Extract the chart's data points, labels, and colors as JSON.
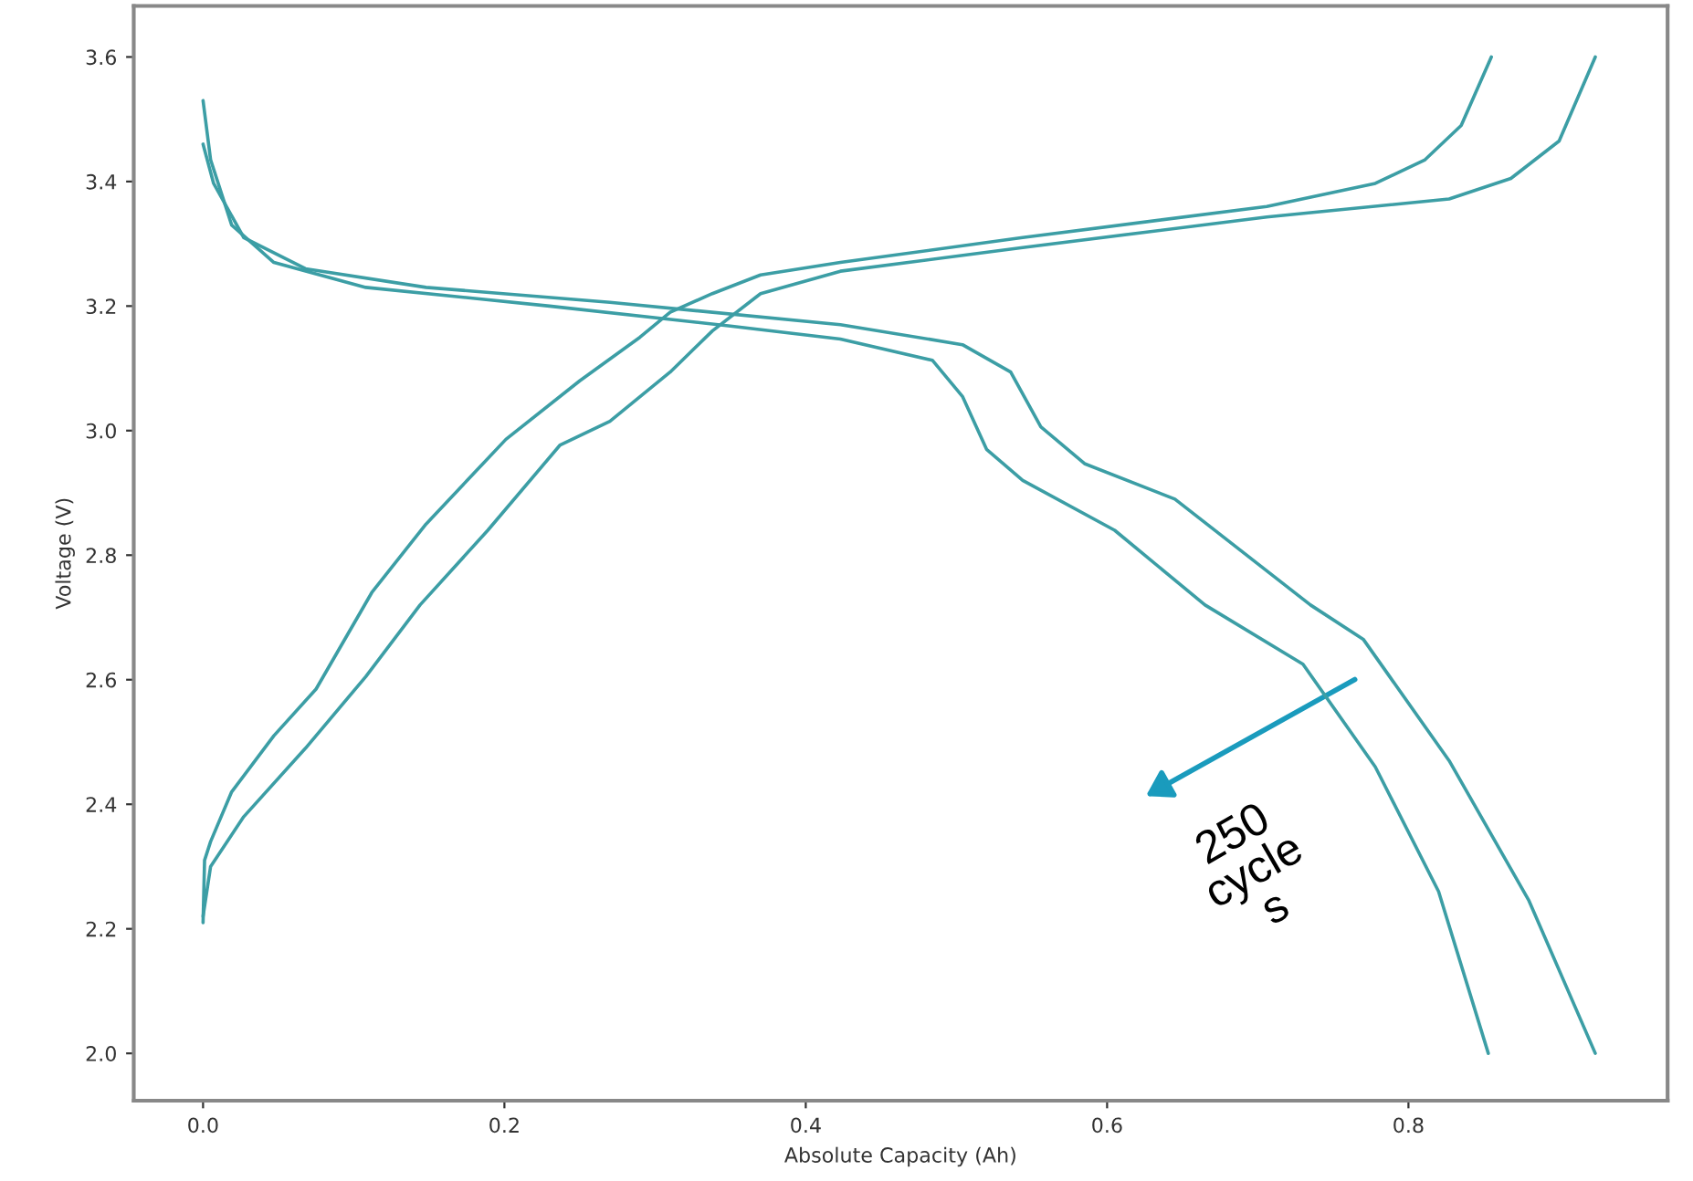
{
  "chart_data": {
    "type": "line",
    "xlabel": "Absolute Capacity (Ah)",
    "ylabel": "Voltage (V)",
    "xlim": [
      -0.046,
      0.972
    ],
    "ylim": [
      1.924,
      3.682
    ],
    "xticks": [
      {
        "value": 0,
        "label": "0.0"
      },
      0.2,
      0.4,
      0.6,
      0.8
    ],
    "yticks": [
      {
        "value": 2,
        "label": "2.0"
      },
      2.2,
      2.4,
      2.6,
      2.8,
      {
        "value": 3,
        "label": "3.0"
      },
      3.2,
      3.4,
      3.6
    ],
    "grid": false,
    "marker": "none",
    "line_style": "solid",
    "series": [
      {
        "color": "#3c9ea5",
        "x": [
          0.0,
          0.001,
          0.005,
          0.019,
          0.047,
          0.075,
          0.112,
          0.148,
          0.201,
          0.25,
          0.29,
          0.31,
          0.338,
          0.37,
          0.423,
          0.544,
          0.706,
          0.778,
          0.811,
          0.835,
          0.855
        ],
        "values": [
          2.21,
          2.31,
          2.34,
          2.42,
          2.51,
          2.585,
          2.74,
          2.85,
          2.986,
          3.08,
          3.15,
          3.19,
          3.22,
          3.25,
          3.27,
          3.31,
          3.36,
          3.397,
          3.435,
          3.49,
          3.6
        ]
      },
      {
        "color": "#3c9ea5",
        "x": [
          0.0,
          0.005,
          0.027,
          0.068,
          0.108,
          0.144,
          0.189,
          0.237,
          0.27,
          0.31,
          0.338,
          0.37,
          0.423,
          0.544,
          0.706,
          0.827,
          0.868,
          0.9,
          0.924
        ],
        "values": [
          2.22,
          2.3,
          2.38,
          2.49,
          2.605,
          2.72,
          2.84,
          2.977,
          3.015,
          3.094,
          3.16,
          3.22,
          3.256,
          3.294,
          3.343,
          3.372,
          3.405,
          3.465,
          3.6
        ]
      },
      {
        "color": "#3c9ea5",
        "x": [
          0.0,
          0.005,
          0.019,
          0.047,
          0.108,
          0.23,
          0.35,
          0.423,
          0.484,
          0.504,
          0.52,
          0.544,
          0.605,
          0.665,
          0.73,
          0.778,
          0.82,
          0.853
        ],
        "values": [
          3.53,
          3.435,
          3.33,
          3.27,
          3.23,
          3.2,
          3.168,
          3.147,
          3.113,
          3.055,
          2.97,
          2.92,
          2.84,
          2.72,
          2.625,
          2.46,
          2.26,
          2.0
        ]
      },
      {
        "color": "#3c9ea5",
        "x": [
          0.0,
          0.007,
          0.027,
          0.068,
          0.148,
          0.27,
          0.423,
          0.504,
          0.536,
          0.556,
          0.585,
          0.645,
          0.735,
          0.77,
          0.827,
          0.88,
          0.924
        ],
        "values": [
          3.46,
          3.397,
          3.31,
          3.26,
          3.23,
          3.206,
          3.17,
          3.138,
          3.094,
          3.006,
          2.947,
          2.89,
          2.72,
          2.665,
          2.47,
          2.245,
          2.0
        ]
      }
    ],
    "annotations": [
      "250\ncycle\ns"
    ]
  }
}
